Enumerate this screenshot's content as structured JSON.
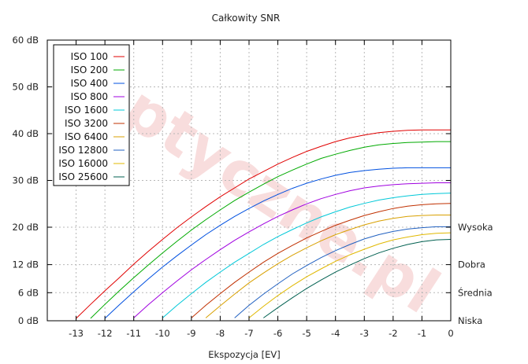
{
  "chart_data": {
    "type": "line",
    "title": "Całkowity SNR",
    "xlabel": "Ekspozycja [EV]",
    "ylabel": "",
    "xlim": [
      -14,
      0
    ],
    "ylim": [
      0,
      60
    ],
    "grid": true,
    "legend_position": "top-left",
    "watermark": "optyczne.pl",
    "x_ticks": [
      -13,
      -12,
      -11,
      -10,
      -9,
      -8,
      -7,
      -6,
      -5,
      -4,
      -3,
      -2,
      -1,
      0
    ],
    "y_ticks": [
      {
        "value": 0,
        "label": "0 dB"
      },
      {
        "value": 6,
        "label": "6 dB"
      },
      {
        "value": 12,
        "label": "12 dB"
      },
      {
        "value": 20,
        "label": "20 dB"
      },
      {
        "value": 30,
        "label": "30 dB"
      },
      {
        "value": 40,
        "label": "40 dB"
      },
      {
        "value": 50,
        "label": "50 dB"
      },
      {
        "value": 60,
        "label": "60 dB"
      }
    ],
    "right_labels": [
      {
        "value": 20,
        "label": "Wysoka"
      },
      {
        "value": 12,
        "label": "Dobra"
      },
      {
        "value": 6,
        "label": "Średnia"
      },
      {
        "value": 0,
        "label": "Niska"
      }
    ],
    "x": [
      -13.5,
      -13,
      -12.5,
      -12,
      -11.5,
      -11,
      -10.5,
      -10,
      -9.5,
      -9,
      -8.5,
      -8,
      -7.5,
      -7,
      -6.5,
      -6,
      -5.5,
      -5,
      -4.5,
      -4,
      -3.5,
      -3,
      -2.5,
      -2,
      -1.5,
      -1,
      -0.5,
      0
    ],
    "series": [
      {
        "name": "ISO 100",
        "color": "#e00000",
        "values": [
          null,
          0.5,
          3.5,
          6.4,
          9.2,
          12.1,
          14.8,
          17.4,
          19.9,
          22.2,
          24.4,
          26.5,
          28.4,
          30.3,
          31.9,
          33.5,
          34.9,
          36.2,
          37.3,
          38.3,
          39.1,
          39.7,
          40.2,
          40.5,
          40.7,
          40.8,
          40.8,
          40.8
        ]
      },
      {
        "name": "ISO 200",
        "color": "#00aa00",
        "values": [
          null,
          null,
          0.5,
          3.5,
          6.4,
          9.2,
          11.9,
          14.5,
          17.0,
          19.4,
          21.6,
          23.7,
          25.7,
          27.5,
          29.2,
          30.8,
          32.2,
          33.5,
          34.7,
          35.6,
          36.4,
          37.1,
          37.6,
          37.9,
          38.1,
          38.2,
          38.3,
          38.3
        ]
      },
      {
        "name": "ISO 400",
        "color": "#0050e0",
        "values": [
          null,
          null,
          null,
          0.5,
          3.4,
          6.2,
          8.9,
          11.5,
          13.9,
          16.2,
          18.4,
          20.4,
          22.3,
          24.0,
          25.6,
          27.0,
          28.3,
          29.4,
          30.3,
          31.1,
          31.7,
          32.1,
          32.4,
          32.6,
          32.7,
          32.7,
          32.7,
          32.7
        ]
      },
      {
        "name": "ISO 800",
        "color": "#a000e0",
        "values": [
          null,
          null,
          null,
          null,
          null,
          0.6,
          3.4,
          6.0,
          8.5,
          10.9,
          13.1,
          15.2,
          17.2,
          19.0,
          20.7,
          22.3,
          23.7,
          25.0,
          26.1,
          27.0,
          27.8,
          28.4,
          28.8,
          29.1,
          29.3,
          29.4,
          29.5,
          29.5
        ]
      },
      {
        "name": "ISO 1600",
        "color": "#00c8d8",
        "values": [
          null,
          null,
          null,
          null,
          null,
          null,
          null,
          0.6,
          3.3,
          5.8,
          8.2,
          10.4,
          12.5,
          14.4,
          16.3,
          18.0,
          19.5,
          20.9,
          22.2,
          23.3,
          24.3,
          25.1,
          25.8,
          26.3,
          26.7,
          27.0,
          27.2,
          27.3
        ]
      },
      {
        "name": "ISO 3200",
        "color": "#c03000",
        "values": [
          null,
          null,
          null,
          null,
          null,
          null,
          null,
          null,
          null,
          0.6,
          3.3,
          5.8,
          8.2,
          10.4,
          12.5,
          14.4,
          16.1,
          17.7,
          19.1,
          20.4,
          21.5,
          22.5,
          23.3,
          24.0,
          24.5,
          24.8,
          25.0,
          25.1
        ]
      },
      {
        "name": "ISO 6400",
        "color": "#d8a000",
        "values": [
          null,
          null,
          null,
          null,
          null,
          null,
          null,
          null,
          null,
          null,
          0.6,
          3.2,
          5.7,
          8.1,
          10.2,
          12.2,
          14.0,
          15.6,
          17.1,
          18.4,
          19.5,
          20.5,
          21.3,
          21.9,
          22.3,
          22.5,
          22.6,
          22.6
        ]
      },
      {
        "name": "ISO 12800",
        "color": "#2060c0",
        "values": [
          null,
          null,
          null,
          null,
          null,
          null,
          null,
          null,
          null,
          null,
          null,
          null,
          0.6,
          3.3,
          5.7,
          7.9,
          10.0,
          11.8,
          13.5,
          15.0,
          16.3,
          17.5,
          18.4,
          19.1,
          19.6,
          19.9,
          20.1,
          20.1
        ]
      },
      {
        "name": "ISO 16000",
        "color": "#e0b800",
        "values": [
          null,
          null,
          null,
          null,
          null,
          null,
          null,
          null,
          null,
          null,
          null,
          null,
          null,
          0.6,
          3.1,
          5.4,
          7.5,
          9.4,
          11.1,
          12.7,
          14.1,
          15.3,
          16.4,
          17.3,
          17.9,
          18.4,
          18.7,
          18.8
        ]
      },
      {
        "name": "ISO 25600",
        "color": "#006050",
        "values": [
          null,
          null,
          null,
          null,
          null,
          null,
          null,
          null,
          null,
          null,
          null,
          null,
          null,
          null,
          0.6,
          2.8,
          4.9,
          6.9,
          8.7,
          10.4,
          11.9,
          13.3,
          14.5,
          15.5,
          16.3,
          16.9,
          17.3,
          17.4
        ]
      }
    ]
  }
}
